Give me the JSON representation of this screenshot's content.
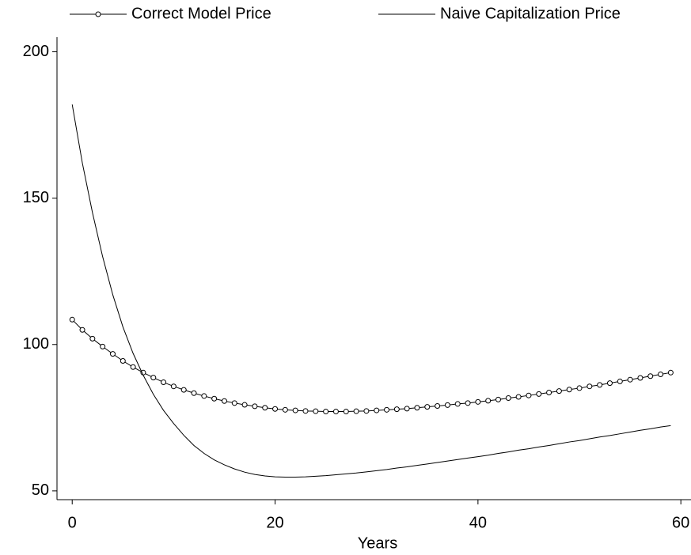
{
  "chart_data": {
    "type": "line",
    "x": [
      0,
      1,
      2,
      3,
      4,
      5,
      6,
      7,
      8,
      9,
      10,
      11,
      12,
      13,
      14,
      15,
      16,
      17,
      18,
      19,
      20,
      21,
      22,
      23,
      24,
      25,
      26,
      27,
      28,
      29,
      30,
      31,
      32,
      33,
      34,
      35,
      36,
      37,
      38,
      39,
      40,
      41,
      42,
      43,
      44,
      45,
      46,
      47,
      48,
      49,
      50,
      51,
      52,
      53,
      54,
      55,
      56,
      57,
      58,
      59
    ],
    "series": [
      {
        "name": "Correct Model Price",
        "color": "#000000",
        "marker": "circle",
        "values": [
          108.5,
          105,
          102,
          99.3,
          96.8,
          94.4,
          92.3,
          90.4,
          88.7,
          87.1,
          85.7,
          84.5,
          83.4,
          82.4,
          81.5,
          80.7,
          80,
          79.4,
          78.9,
          78.4,
          78,
          77.7,
          77.5,
          77.3,
          77.2,
          77.1,
          77.1,
          77.1,
          77.2,
          77.3,
          77.5,
          77.7,
          77.9,
          78.1,
          78.4,
          78.7,
          79,
          79.3,
          79.7,
          80,
          80.4,
          80.8,
          81.2,
          81.7,
          82.1,
          82.6,
          83.1,
          83.6,
          84.1,
          84.6,
          85.1,
          85.7,
          86.2,
          86.8,
          87.4,
          88,
          88.6,
          89.2,
          89.8,
          90.4
        ]
      },
      {
        "name": "Naive Capitalization Price",
        "color": "#000000",
        "marker": "none",
        "values": [
          182,
          162,
          145,
          130,
          117,
          106,
          97,
          89.5,
          83,
          77.5,
          73,
          69,
          65.5,
          62.8,
          60.6,
          58.9,
          57.5,
          56.4,
          55.6,
          55.1,
          54.8,
          54.7,
          54.7,
          54.8,
          55,
          55.2,
          55.5,
          55.8,
          56.1,
          56.5,
          56.9,
          57.3,
          57.8,
          58.2,
          58.7,
          59.2,
          59.7,
          60.2,
          60.7,
          61.2,
          61.7,
          62.2,
          62.8,
          63.3,
          63.9,
          64.4,
          65,
          65.5,
          66.1,
          66.7,
          67.2,
          67.8,
          68.4,
          68.9,
          69.5,
          70.1,
          70.7,
          71.2,
          71.8,
          72.3
        ]
      }
    ],
    "x_label": "Years",
    "xlim": [
      -1.5,
      61
    ],
    "xticks": [
      0,
      20,
      40,
      60
    ],
    "ylim": [
      47,
      205
    ],
    "yticks": [
      50,
      100,
      150,
      200
    ],
    "legend": "top"
  }
}
